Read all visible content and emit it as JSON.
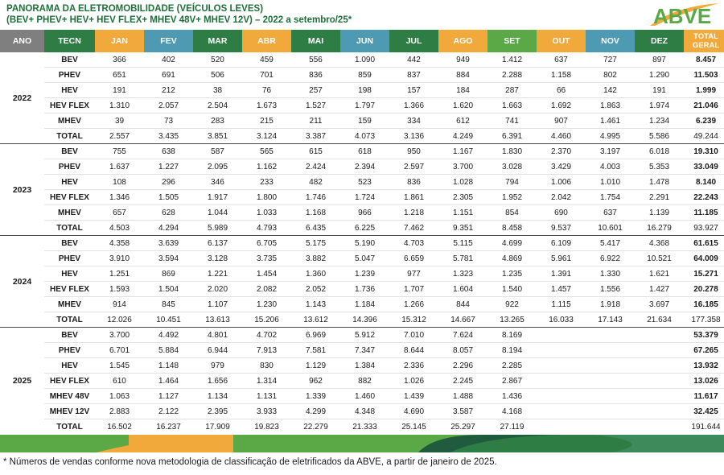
{
  "header": {
    "title_line1": "PANORAMA DA ELETROMOBILIDADE (VEÍCULOS LEVES)",
    "title_line2": "(BEV+ PHEV+ HEV+ HEV FLEX+ MHEV 48V+ MHEV 12V) – 2022 a setembro/25*",
    "logo_text": "ABVE"
  },
  "colors": {
    "dark_green": "#2e7d45",
    "mid_green": "#5aa846",
    "orange": "#f0a93a",
    "teal": "#4e9ab2",
    "gray": "#7f7f7f",
    "text": "#1a1a1a"
  },
  "columns": [
    "ANO",
    "TECN",
    "JAN",
    "FEV",
    "MAR",
    "ABR",
    "MAI",
    "JUN",
    "JUL",
    "AGO",
    "SET",
    "OUT",
    "NOV",
    "DEZ",
    "TOTAL GERAL"
  ],
  "column_colors": [
    "#7f7f7f",
    "#2e7d45",
    "#f0a93a",
    "#4e9ab2",
    "#2e7d45",
    "#f0a93a",
    "#2e7d45",
    "#4e9ab2",
    "#2e7d45",
    "#f0a93a",
    "#5aa846",
    "#f0a93a",
    "#4e9ab2",
    "#2e7d45",
    "#f0a93a"
  ],
  "years": [
    {
      "year": "2022",
      "rows": [
        [
          "BEV",
          "366",
          "402",
          "520",
          "459",
          "556",
          "1.090",
          "442",
          "949",
          "1.412",
          "637",
          "727",
          "897",
          "8.457"
        ],
        [
          "PHEV",
          "651",
          "691",
          "506",
          "701",
          "836",
          "859",
          "837",
          "884",
          "2.288",
          "1.158",
          "802",
          "1.290",
          "11.503"
        ],
        [
          "HEV",
          "191",
          "212",
          "38",
          "76",
          "257",
          "198",
          "157",
          "184",
          "287",
          "66",
          "142",
          "191",
          "1.999"
        ],
        [
          "HEV FLEX",
          "1.310",
          "2.057",
          "2.504",
          "1.673",
          "1.527",
          "1.797",
          "1.366",
          "1.620",
          "1.663",
          "1.692",
          "1.863",
          "1.974",
          "21.046"
        ],
        [
          "MHEV",
          "39",
          "73",
          "283",
          "215",
          "211",
          "159",
          "334",
          "612",
          "741",
          "907",
          "1.461",
          "1.234",
          "6.239"
        ],
        [
          "TOTAL",
          "2.557",
          "3.435",
          "3.851",
          "3.124",
          "3.387",
          "4.073",
          "3.136",
          "4.249",
          "6.391",
          "4.460",
          "4.995",
          "5.586",
          "49.244"
        ]
      ]
    },
    {
      "year": "2023",
      "rows": [
        [
          "BEV",
          "755",
          "638",
          "587",
          "565",
          "615",
          "618",
          "950",
          "1.167",
          "1.830",
          "2.370",
          "3.197",
          "6.018",
          "19.310"
        ],
        [
          "PHEV",
          "1.637",
          "1.227",
          "2.095",
          "1.162",
          "2.424",
          "2.394",
          "2.597",
          "3.700",
          "3.028",
          "3.429",
          "4.003",
          "5.353",
          "33.049"
        ],
        [
          "HEV",
          "108",
          "296",
          "346",
          "233",
          "482",
          "523",
          "836",
          "1.028",
          "794",
          "1.006",
          "1.010",
          "1.478",
          "8.140"
        ],
        [
          "HEV FLEX",
          "1.346",
          "1.505",
          "1.917",
          "1.800",
          "1.746",
          "1.724",
          "1.861",
          "2.305",
          "1.952",
          "2.042",
          "1.754",
          "2.291",
          "22.243"
        ],
        [
          "MHEV",
          "657",
          "628",
          "1.044",
          "1.033",
          "1.168",
          "966",
          "1.218",
          "1.151",
          "854",
          "690",
          "637",
          "1.139",
          "11.185"
        ],
        [
          "TOTAL",
          "4.503",
          "4.294",
          "5.989",
          "4.793",
          "6.435",
          "6.225",
          "7.462",
          "9.351",
          "8.458",
          "9.537",
          "10.601",
          "16.279",
          "93.927"
        ]
      ]
    },
    {
      "year": "2024",
      "rows": [
        [
          "BEV",
          "4.358",
          "3.639",
          "6.137",
          "6.705",
          "5.175",
          "5.190",
          "4.703",
          "5.115",
          "4.699",
          "6.109",
          "5.417",
          "4.368",
          "61.615"
        ],
        [
          "PHEV",
          "3.910",
          "3.594",
          "3.128",
          "3.735",
          "3.882",
          "5.047",
          "6.659",
          "5.781",
          "4.869",
          "5.961",
          "6.922",
          "10.521",
          "64.009"
        ],
        [
          "HEV",
          "1.251",
          "869",
          "1.221",
          "1.454",
          "1.360",
          "1.239",
          "977",
          "1.323",
          "1.235",
          "1.391",
          "1.330",
          "1.621",
          "15.271"
        ],
        [
          "HEV FLEX",
          "1.593",
          "1.504",
          "2.020",
          "2.082",
          "2.052",
          "1.736",
          "1.707",
          "1.604",
          "1.540",
          "1.457",
          "1.556",
          "1.427",
          "20.278"
        ],
        [
          "MHEV",
          "914",
          "845",
          "1.107",
          "1.230",
          "1.143",
          "1.184",
          "1.266",
          "844",
          "922",
          "1.115",
          "1.918",
          "3.697",
          "16.185"
        ],
        [
          "TOTAL",
          "12.026",
          "10.451",
          "13.613",
          "15.206",
          "13.612",
          "14.396",
          "15.312",
          "14.667",
          "13.265",
          "16.033",
          "17.143",
          "21.634",
          "177.358"
        ]
      ]
    },
    {
      "year": "2025",
      "rows": [
        [
          "BEV",
          "3.700",
          "4.492",
          "4.801",
          "4.702",
          "6.969",
          "5.912",
          "7.010",
          "7.624",
          "8.169",
          "",
          "",
          "",
          "53.379"
        ],
        [
          "PHEV",
          "6.701",
          "5.884",
          "6.944",
          "7.913",
          "7.581",
          "7.347",
          "8.644",
          "8.057",
          "8.194",
          "",
          "",
          "",
          "67.265"
        ],
        [
          "HEV",
          "1.545",
          "1.148",
          "979",
          "830",
          "1.129",
          "1.384",
          "2.336",
          "2.296",
          "2.285",
          "",
          "",
          "",
          "13.932"
        ],
        [
          "HEV FLEX",
          "610",
          "1.464",
          "1.656",
          "1.314",
          "962",
          "882",
          "1.026",
          "2.245",
          "2.867",
          "",
          "",
          "",
          "13.026"
        ],
        [
          "MHEV 48V",
          "1.063",
          "1.127",
          "1.134",
          "1.131",
          "1.339",
          "1.460",
          "1.439",
          "1.488",
          "1.436",
          "",
          "",
          "",
          "11.617"
        ],
        [
          "MHEV 12V",
          "2.883",
          "2.122",
          "2.395",
          "3.933",
          "4.299",
          "4.348",
          "4.690",
          "3.587",
          "4.168",
          "",
          "",
          "",
          "32.425"
        ],
        [
          "TOTAL",
          "16.502",
          "16.237",
          "17.909",
          "19.823",
          "22.279",
          "21.333",
          "25.145",
          "25.297",
          "27.119",
          "",
          "",
          "",
          "191.644"
        ]
      ]
    }
  ],
  "footnote": "* Números de vendas conforme nova metodologia de classificação de eletrificados da ABVE, a partir de janeiro de 2025."
}
